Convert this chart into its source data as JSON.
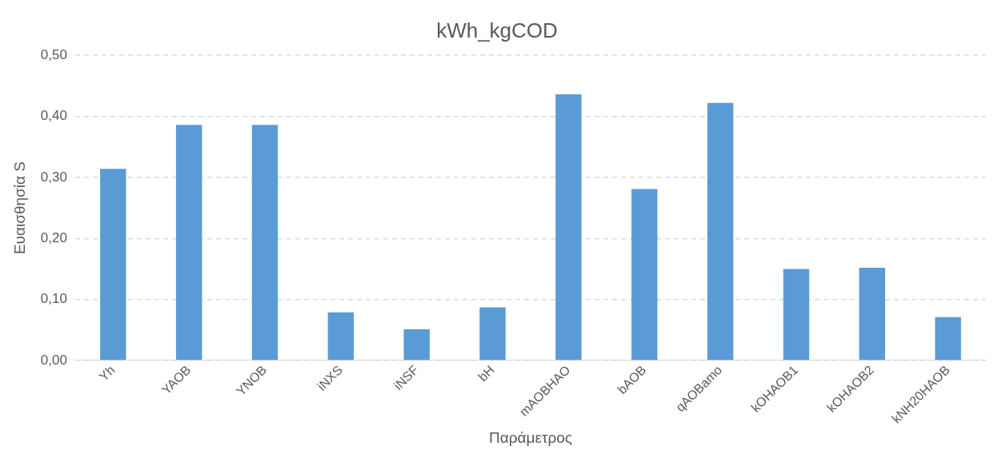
{
  "chart_data": {
    "type": "bar",
    "title": "kWh_kgCOD",
    "xlabel": "Παράμετρος",
    "ylabel": "Ευαισθησία S",
    "categories": [
      "Yh",
      "YAOB",
      "YNOB",
      "iNXS",
      "iNSF",
      "bH",
      "mAOBHAO",
      "bAOB",
      "qAOBamo",
      "kOHAOB1",
      "kOHAOB2",
      "kNH20HAOB"
    ],
    "values": [
      0.314,
      0.386,
      0.386,
      0.079,
      0.051,
      0.087,
      0.436,
      0.281,
      0.422,
      0.15,
      0.152,
      0.071
    ],
    "color": "#5b9bd5",
    "ylim": [
      0,
      0.5
    ],
    "yticks": [
      {
        "value": 0,
        "label": "0,00"
      },
      {
        "value": 0.1,
        "label": "0,10"
      },
      {
        "value": 0.2,
        "label": "0,20"
      },
      {
        "value": 0.3,
        "label": "0,30"
      },
      {
        "value": 0.4,
        "label": "0,40"
      },
      {
        "value": 0.5,
        "label": "0,50"
      }
    ],
    "grid": "y"
  }
}
